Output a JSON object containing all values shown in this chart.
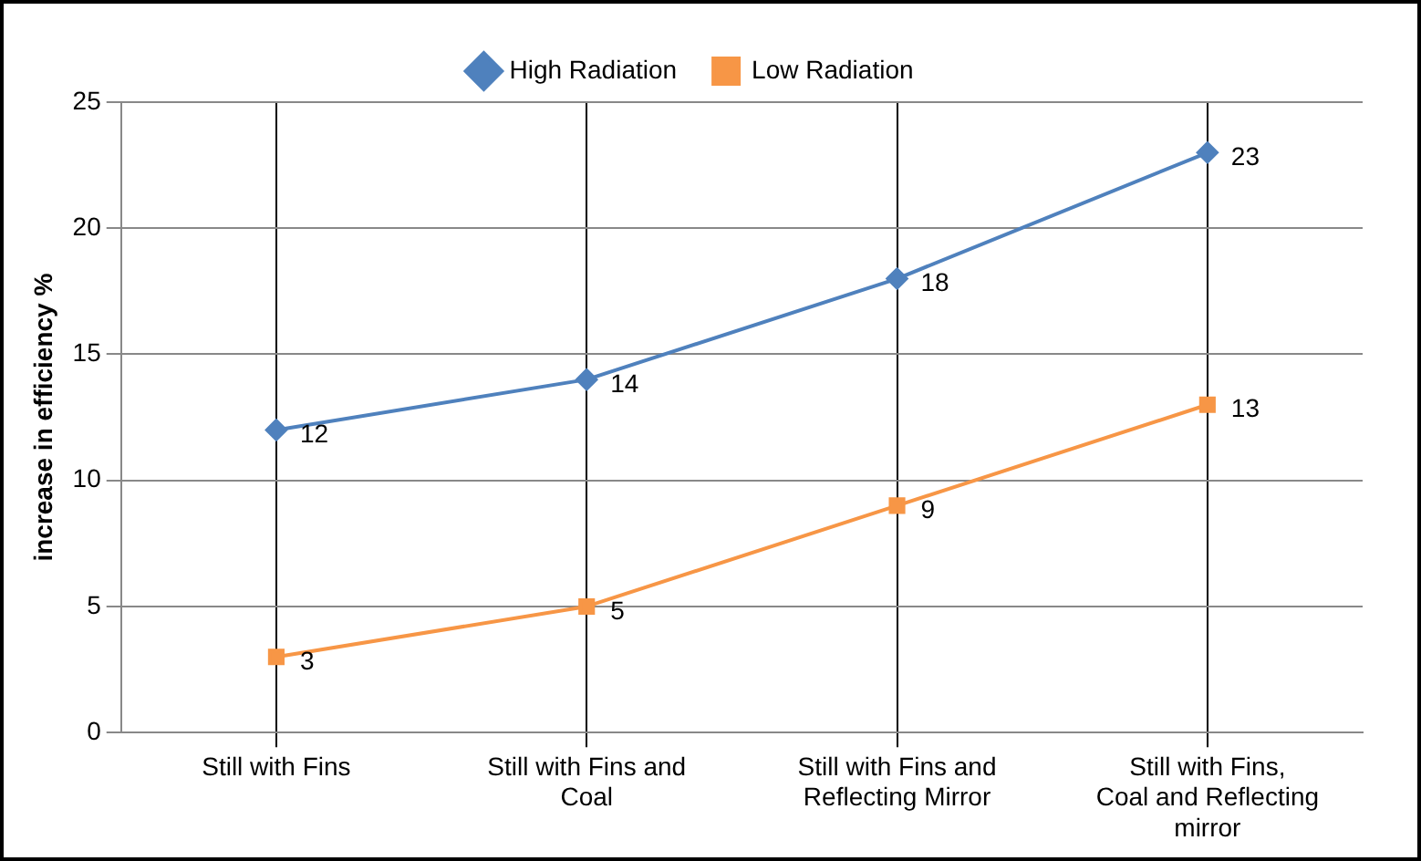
{
  "chart_data": {
    "type": "line",
    "ylabel": "increase in efficiency %",
    "categories": [
      "Still with Fins",
      "Still with Fins and Coal",
      "Still with Fins and Reflecting Mirror",
      "Still with Fins, Coal and Reflecting mirror"
    ],
    "series": [
      {
        "name": "High Radiation",
        "color": "#4f81bd",
        "marker": "diamond",
        "values": [
          12,
          14,
          18,
          23
        ]
      },
      {
        "name": "Low Radiation",
        "color": "#f79646",
        "marker": "square",
        "values": [
          3,
          5,
          9,
          13
        ]
      }
    ],
    "ylim": [
      0,
      25
    ],
    "yticks": [
      0,
      5,
      10,
      15,
      20,
      25
    ],
    "grid": true,
    "legend": "top",
    "data_labels": true,
    "line_style": "solid"
  }
}
